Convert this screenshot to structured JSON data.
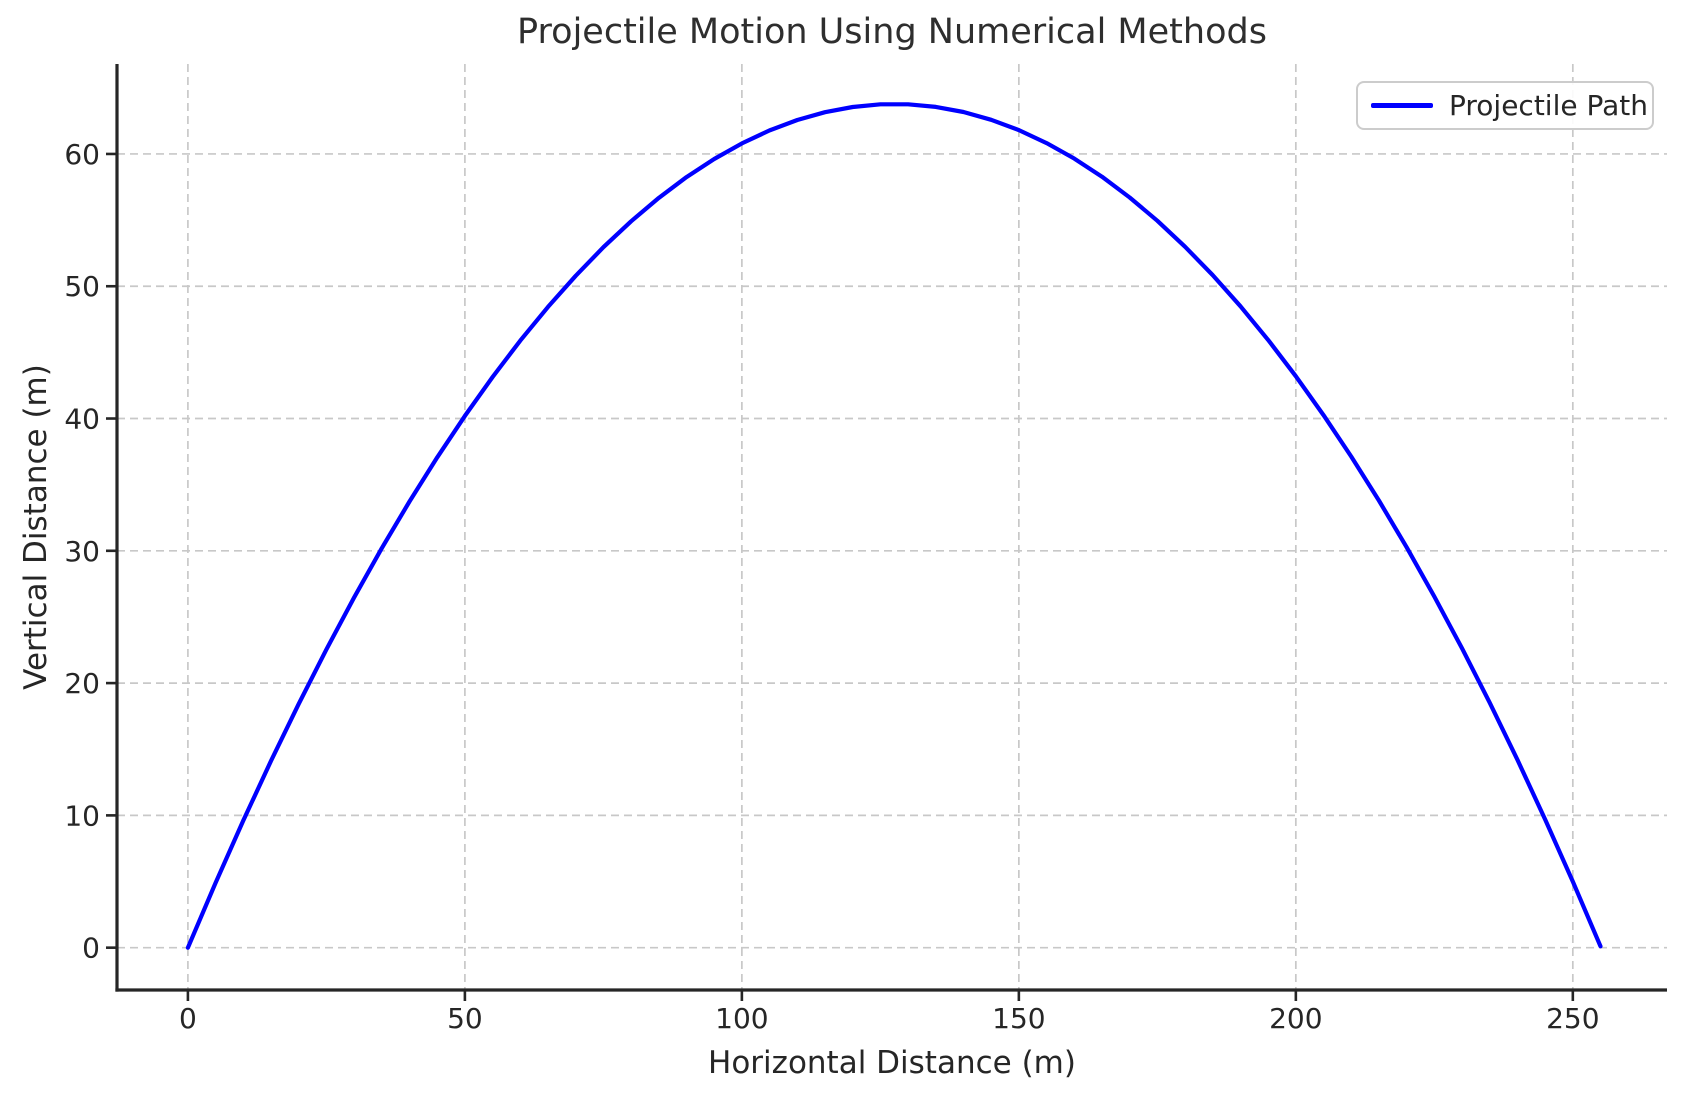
{
  "chart_data": {
    "type": "line",
    "title": "Projectile Motion Using Numerical Methods",
    "xlabel": "Horizontal Distance (m)",
    "ylabel": "Vertical Distance (m)",
    "xlim": [
      -12.8,
      267.0
    ],
    "ylim": [
      -3.2,
      66.8
    ],
    "xticks": [
      0,
      50,
      100,
      150,
      200,
      250
    ],
    "yticks": [
      0,
      10,
      20,
      30,
      40,
      50,
      60
    ],
    "grid": true,
    "grid_style": "dashed",
    "legend_position": "upper right",
    "series": [
      {
        "name": "Projectile Path",
        "color": "#0000ff",
        "x": [
          0,
          5,
          10,
          15,
          20,
          25,
          30,
          35,
          40,
          45,
          50,
          55,
          60,
          65,
          70,
          75,
          80,
          85,
          90,
          95,
          100,
          105,
          110,
          115,
          120,
          125,
          130,
          135,
          140,
          145,
          150,
          155,
          160,
          165,
          170,
          175,
          180,
          185,
          190,
          195,
          200,
          205,
          210,
          215,
          220,
          225,
          230,
          235,
          240,
          245,
          250,
          255
        ],
        "y": [
          0,
          4.9,
          9.61,
          14.12,
          18.43,
          22.55,
          26.47,
          30.2,
          33.73,
          37.06,
          40.2,
          43.14,
          45.89,
          48.44,
          50.79,
          52.95,
          54.91,
          56.68,
          58.25,
          59.62,
          60.8,
          61.78,
          62.57,
          63.16,
          63.55,
          63.75,
          63.75,
          63.56,
          63.17,
          62.58,
          61.8,
          60.82,
          59.65,
          58.28,
          56.71,
          54.95,
          52.99,
          50.84,
          48.49,
          45.94,
          43.2,
          40.26,
          37.13,
          33.8,
          30.27,
          26.55,
          22.63,
          18.52,
          14.21,
          9.7,
          5.0,
          0.1
        ]
      }
    ]
  },
  "colors": {
    "accent": "#0000ff",
    "grid": "#c8c8c8",
    "axis": "#262626",
    "text": "#262626",
    "legend_border": "#cccccc",
    "background": "#ffffff"
  }
}
